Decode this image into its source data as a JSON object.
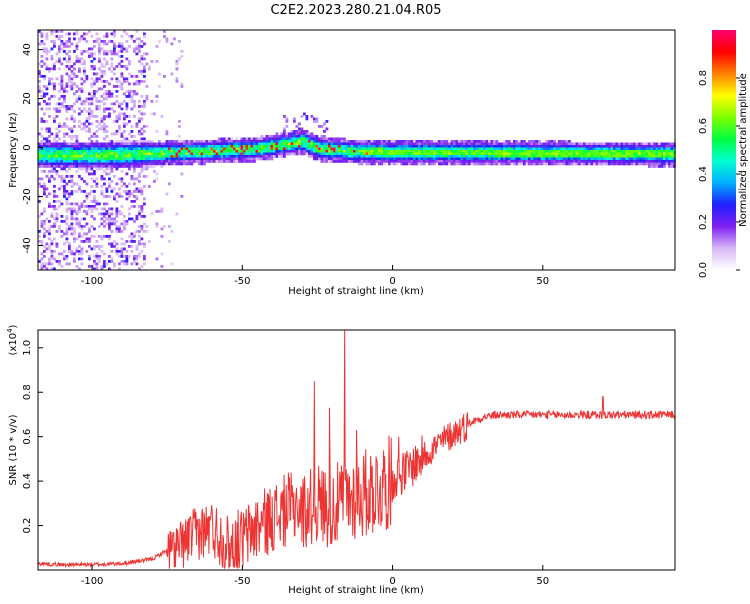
{
  "title": "C2E2.2023.280.21.04.R05",
  "chart_data": [
    {
      "type": "heatmap",
      "xlabel": "Height of straight line (km)",
      "ylabel": "Frequency (Hz)",
      "xlim": [
        -118,
        94
      ],
      "ylim": [
        -50,
        48
      ],
      "xticks": [
        -100,
        -50,
        0,
        50
      ],
      "yticks": [
        -40,
        -20,
        0,
        20,
        40
      ],
      "colorbar": {
        "label": "Normalized spectral amplitude",
        "range": [
          0,
          1
        ],
        "ticks": [
          "0.0",
          "0.2",
          "0.4",
          "0.6",
          "0.8"
        ],
        "tick_values": [
          0.0,
          0.2,
          0.4,
          0.6,
          0.8
        ],
        "colors": [
          "#ffffff",
          "#d8b8f8",
          "#8020f0",
          "#2020ff",
          "#00b0ff",
          "#00ffd0",
          "#00ff40",
          "#80ff00",
          "#ffff00",
          "#ff8000",
          "#ff0000",
          "#ff0070"
        ]
      },
      "ridge": {
        "x": [
          -118,
          -100,
          -80,
          -60,
          -45,
          -35,
          -30,
          -25,
          -15,
          0,
          20,
          50,
          70,
          94
        ],
        "freq": [
          -2.5,
          -2.8,
          -2.0,
          -1.0,
          0.0,
          2.0,
          3.0,
          0.0,
          -1.0,
          -1.5,
          -1.5,
          -1.8,
          -2.0,
          -2.2
        ]
      }
    },
    {
      "type": "line",
      "xlabel": "Height of straight line (km)",
      "ylabel": "SNR (10 * v/v)",
      "y_multiplier": "(x10",
      "y_multiplier_exp": "4",
      "y_multiplier_close": ")",
      "xlim": [
        -118,
        94
      ],
      "ylim": [
        0,
        10800
      ],
      "xticks": [
        -100,
        -50,
        0,
        50
      ],
      "yticks": [
        2000,
        4000,
        6000,
        8000,
        10000
      ],
      "ytick_labels": [
        "0.2",
        "0.4",
        "0.6",
        "0.8",
        "1.0"
      ],
      "color": "#ee3333",
      "series": [
        {
          "x": [
            -118,
            -110,
            -100,
            -90,
            -80,
            -75,
            -70,
            -65,
            -60,
            -55,
            -50,
            -45,
            -40,
            -35,
            -30,
            -25,
            -20,
            -15,
            -10,
            -5,
            0,
            5,
            10,
            15,
            20,
            25,
            30,
            35,
            40,
            50,
            60,
            70,
            80,
            94
          ],
          "values": [
            300,
            250,
            250,
            300,
            500,
            900,
            1200,
            1800,
            2000,
            1300,
            1500,
            2100,
            2500,
            2900,
            2800,
            3200,
            3000,
            3400,
            3600,
            3900,
            4200,
            4600,
            5200,
            5700,
            6200,
            6600,
            6900,
            7000,
            7000,
            7000,
            7000,
            7000,
            7000,
            7000
          ]
        }
      ],
      "spikes": [
        {
          "x": -68,
          "y": 2300
        },
        {
          "x": -60,
          "y": 2700
        },
        {
          "x": -40,
          "y": 3300
        },
        {
          "x": -32,
          "y": 3700
        },
        {
          "x": -26,
          "y": 8500
        },
        {
          "x": -21,
          "y": 7300
        },
        {
          "x": -16,
          "y": 10800
        },
        {
          "x": -12,
          "y": 6300
        },
        {
          "x": 2,
          "y": 6000
        },
        {
          "x": 70,
          "y": 7800
        }
      ]
    }
  ]
}
